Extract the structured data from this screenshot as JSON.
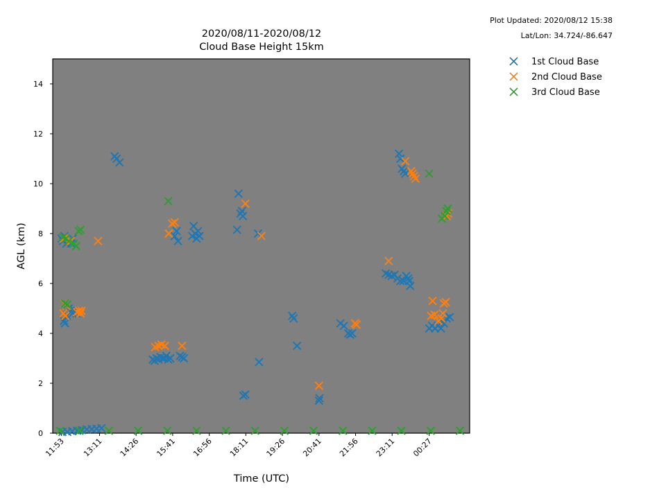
{
  "meta": {
    "updated": "Plot Updated: 2020/08/12 15:38",
    "latlon": "Lat/Lon: 34.724/-86.647"
  },
  "chart_data": {
    "type": "scatter",
    "title": "2020/08/11-2020/08/12",
    "subtitle": "Cloud Base Height 15km",
    "xlabel": "Time (UTC)",
    "ylabel": "AGL (km)",
    "ylim": [
      0,
      15
    ],
    "yticks": [
      0,
      2,
      4,
      6,
      8,
      10,
      12,
      14
    ],
    "xlim": [
      "11:35",
      "01:50"
    ],
    "xticks": [
      "11:53",
      "13:11",
      "14:26",
      "15:41",
      "16:56",
      "18:11",
      "19:26",
      "20:41",
      "21:56",
      "23:11",
      "00:27"
    ],
    "background": "#808080",
    "legend_position": "outside-right",
    "colors": {
      "series1": "#1f77b4",
      "series2": "#ff7f0e",
      "series3": "#2ca02c"
    },
    "series": [
      {
        "name": "1st Cloud Base",
        "points": [
          [
            "11:53",
            7.8
          ],
          [
            "11:56",
            7.7
          ],
          [
            "11:59",
            7.9
          ],
          [
            "12:03",
            7.6
          ],
          [
            "12:08",
            7.7
          ],
          [
            "12:13",
            7.6
          ],
          [
            "12:16",
            7.8
          ],
          [
            "11:58",
            4.5
          ],
          [
            "12:00",
            4.4
          ],
          [
            "12:04",
            4.7
          ],
          [
            "12:08",
            5.0
          ],
          [
            "12:12",
            4.9
          ],
          [
            "12:16",
            4.8
          ],
          [
            "12:20",
            4.9
          ],
          [
            "12:24",
            4.8
          ],
          [
            "11:55",
            0.05
          ],
          [
            "12:05",
            0.05
          ],
          [
            "12:15",
            0.08
          ],
          [
            "12:25",
            0.1
          ],
          [
            "12:35",
            0.12
          ],
          [
            "12:45",
            0.15
          ],
          [
            "12:55",
            0.16
          ],
          [
            "13:05",
            0.18
          ],
          [
            "13:15",
            0.2
          ],
          [
            "13:42",
            11.1
          ],
          [
            "13:46",
            11.0
          ],
          [
            "13:52",
            10.85
          ],
          [
            "15:00",
            2.95
          ],
          [
            "15:04",
            2.9
          ],
          [
            "15:08",
            3.0
          ],
          [
            "15:12",
            2.95
          ],
          [
            "15:16",
            3.05
          ],
          [
            "15:20",
            3.0
          ],
          [
            "15:24",
            3.0
          ],
          [
            "15:28",
            3.1
          ],
          [
            "15:32",
            2.95
          ],
          [
            "15:36",
            3.0
          ],
          [
            "15:56",
            3.1
          ],
          [
            "16:00",
            3.05
          ],
          [
            "16:04",
            3.0
          ],
          [
            "15:45",
            7.9
          ],
          [
            "15:49",
            8.1
          ],
          [
            "15:52",
            7.7
          ],
          [
            "16:21",
            7.9
          ],
          [
            "16:24",
            8.3
          ],
          [
            "16:27",
            8.0
          ],
          [
            "16:30",
            7.8
          ],
          [
            "16:33",
            8.1
          ],
          [
            "16:36",
            7.9
          ],
          [
            "17:53",
            8.15
          ],
          [
            "17:56",
            9.6
          ],
          [
            "18:00",
            8.8
          ],
          [
            "18:03",
            8.9
          ],
          [
            "18:05",
            8.7
          ],
          [
            "18:06",
            1.5
          ],
          [
            "18:10",
            1.55
          ],
          [
            "18:36",
            8.0
          ],
          [
            "18:38",
            2.85
          ],
          [
            "19:46",
            4.7
          ],
          [
            "19:49",
            4.6
          ],
          [
            "19:56",
            3.5
          ],
          [
            "20:41",
            1.3
          ],
          [
            "20:42",
            1.4
          ],
          [
            "21:25",
            4.4
          ],
          [
            "21:32",
            4.3
          ],
          [
            "21:41",
            4.0
          ],
          [
            "21:45",
            3.95
          ],
          [
            "21:49",
            4.0
          ],
          [
            "22:58",
            6.4
          ],
          [
            "23:04",
            6.35
          ],
          [
            "23:10",
            6.3
          ],
          [
            "23:16",
            6.35
          ],
          [
            "23:22",
            6.2
          ],
          [
            "23:28",
            6.1
          ],
          [
            "23:34",
            6.1
          ],
          [
            "23:40",
            6.3
          ],
          [
            "23:44",
            6.2
          ],
          [
            "23:46",
            6.1
          ],
          [
            "23:48",
            5.9
          ],
          [
            "23:25",
            11.2
          ],
          [
            "23:28",
            11.0
          ],
          [
            "23:31",
            10.6
          ],
          [
            "23:35",
            10.5
          ],
          [
            "23:38",
            10.4
          ],
          [
            "00:27",
            4.2
          ],
          [
            "00:33",
            4.3
          ],
          [
            "00:39",
            4.2
          ],
          [
            "00:45",
            4.3
          ],
          [
            "00:51",
            4.2
          ],
          [
            "00:57",
            4.4
          ],
          [
            "01:03",
            4.6
          ],
          [
            "01:09",
            4.65
          ]
        ]
      },
      {
        "name": "2nd Cloud Base",
        "points": [
          [
            "11:59",
            5.2
          ],
          [
            "12:03",
            5.1
          ],
          [
            "11:57",
            4.8
          ],
          [
            "12:01",
            4.7
          ],
          [
            "12:25",
            4.85
          ],
          [
            "12:29",
            4.9
          ],
          [
            "12:34",
            4.9
          ],
          [
            "12:32",
            4.8
          ],
          [
            "11:58",
            7.8
          ],
          [
            "12:12",
            7.7
          ],
          [
            "13:08",
            7.7
          ],
          [
            "15:05",
            3.45
          ],
          [
            "15:12",
            3.5
          ],
          [
            "15:18",
            3.55
          ],
          [
            "15:25",
            3.5
          ],
          [
            "16:00",
            3.5
          ],
          [
            "15:33",
            8.0
          ],
          [
            "15:40",
            8.4
          ],
          [
            "15:45",
            8.45
          ],
          [
            "18:10",
            9.2
          ],
          [
            "18:43",
            7.9
          ],
          [
            "20:41",
            1.9
          ],
          [
            "21:55",
            4.4
          ],
          [
            "21:58",
            4.35
          ],
          [
            "23:04",
            6.9
          ],
          [
            "23:38",
            10.9
          ],
          [
            "23:50",
            10.5
          ],
          [
            "23:53",
            10.4
          ],
          [
            "23:56",
            10.3
          ],
          [
            "23:59",
            10.2
          ],
          [
            "00:34",
            5.3
          ],
          [
            "00:31",
            4.7
          ],
          [
            "00:38",
            4.75
          ],
          [
            "00:46",
            4.5
          ],
          [
            "00:52",
            4.6
          ],
          [
            "00:55",
            4.8
          ],
          [
            "00:57",
            5.2
          ],
          [
            "01:01",
            5.25
          ],
          [
            "01:03",
            8.7
          ],
          [
            "01:06",
            8.8
          ]
        ]
      },
      {
        "name": "3rd Cloud Base",
        "points": [
          [
            "11:56",
            7.85
          ],
          [
            "12:02",
            7.8
          ],
          [
            "12:08",
            7.7
          ],
          [
            "12:18",
            7.6
          ],
          [
            "12:23",
            7.5
          ],
          [
            "12:28",
            8.1
          ],
          [
            "12:32",
            8.15
          ],
          [
            "12:00",
            5.2
          ],
          [
            "12:05",
            5.15
          ],
          [
            "15:32",
            9.3
          ],
          [
            "00:27",
            10.4
          ],
          [
            "00:53",
            8.6
          ],
          [
            "00:59",
            8.7
          ],
          [
            "01:02",
            8.9
          ],
          [
            "01:05",
            9.0
          ],
          [
            "11:50",
            0.1
          ],
          [
            "12:30",
            0.1
          ],
          [
            "13:30",
            0.1
          ],
          [
            "14:30",
            0.1
          ],
          [
            "15:30",
            0.1
          ],
          [
            "16:30",
            0.1
          ],
          [
            "17:30",
            0.1
          ],
          [
            "18:30",
            0.1
          ],
          [
            "19:30",
            0.1
          ],
          [
            "20:30",
            0.1
          ],
          [
            "21:30",
            0.1
          ],
          [
            "22:30",
            0.1
          ],
          [
            "23:30",
            0.1
          ],
          [
            "00:30",
            0.1
          ],
          [
            "01:30",
            0.1
          ]
        ]
      }
    ]
  }
}
